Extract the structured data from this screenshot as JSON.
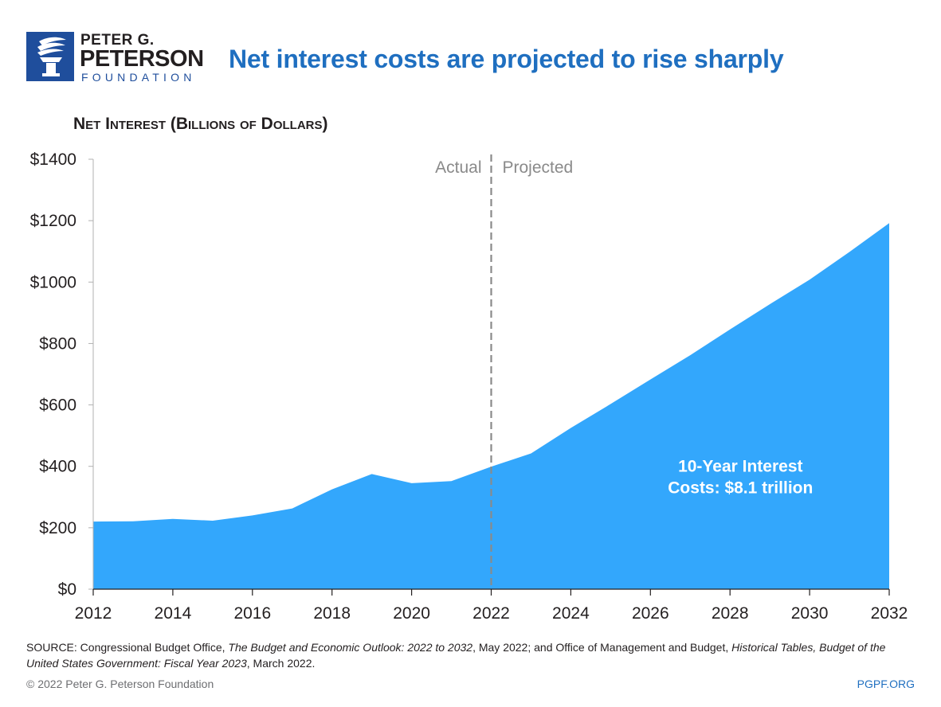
{
  "brand": {
    "line1": "PETER G.",
    "line2": "PETERSON",
    "line3": "FOUNDATION",
    "color": "#1f4e9c",
    "icon": "torch-icon"
  },
  "headline": "Net interest costs are projected to rise sharply",
  "chart_title": "Net Interest (Billions of Dollars)",
  "chart_data": {
    "type": "area",
    "x": [
      2012,
      2013,
      2014,
      2015,
      2016,
      2017,
      2018,
      2019,
      2020,
      2021,
      2022,
      2023,
      2024,
      2025,
      2026,
      2027,
      2028,
      2029,
      2030,
      2031,
      2032
    ],
    "values": [
      220,
      221,
      229,
      223,
      240,
      263,
      325,
      375,
      345,
      352,
      399,
      442,
      525,
      603,
      683,
      762,
      846,
      928,
      1008,
      1098,
      1192
    ],
    "ylim": [
      0,
      1400
    ],
    "yticks": [
      0,
      200,
      400,
      600,
      800,
      1000,
      1200,
      1400
    ],
    "ytick_labels": [
      "$0",
      "$200",
      "$400",
      "$600",
      "$800",
      "$1000",
      "$1200",
      "$1400"
    ],
    "xticks": [
      2012,
      2014,
      2016,
      2018,
      2020,
      2022,
      2024,
      2026,
      2028,
      2030,
      2032
    ],
    "xtick_labels": [
      "2012",
      "2014",
      "2016",
      "2018",
      "2020",
      "2022",
      "2024",
      "2026",
      "2028",
      "2030",
      "2032"
    ],
    "divider_x": 2022,
    "divider_left_label": "Actual",
    "divider_right_label": "Projected",
    "annotation_lines": [
      "10-Year Interest",
      "Costs: $8.1 trillion"
    ],
    "fill_color": "#33a7fc",
    "grid": false
  },
  "source": {
    "prefix": "SOURCE: Congressional Budget Office, ",
    "title1": "The Budget and Economic Outlook: 2022 to 2032",
    "middle": ", May 2022; and Office of Management and Budget, ",
    "title2": "Historical Tables, Budget of the United States Government: Fiscal Year 2023",
    "suffix": ", March 2022."
  },
  "copyright": "© 2022 Peter G. Peterson Foundation",
  "site": "PGPF.ORG"
}
